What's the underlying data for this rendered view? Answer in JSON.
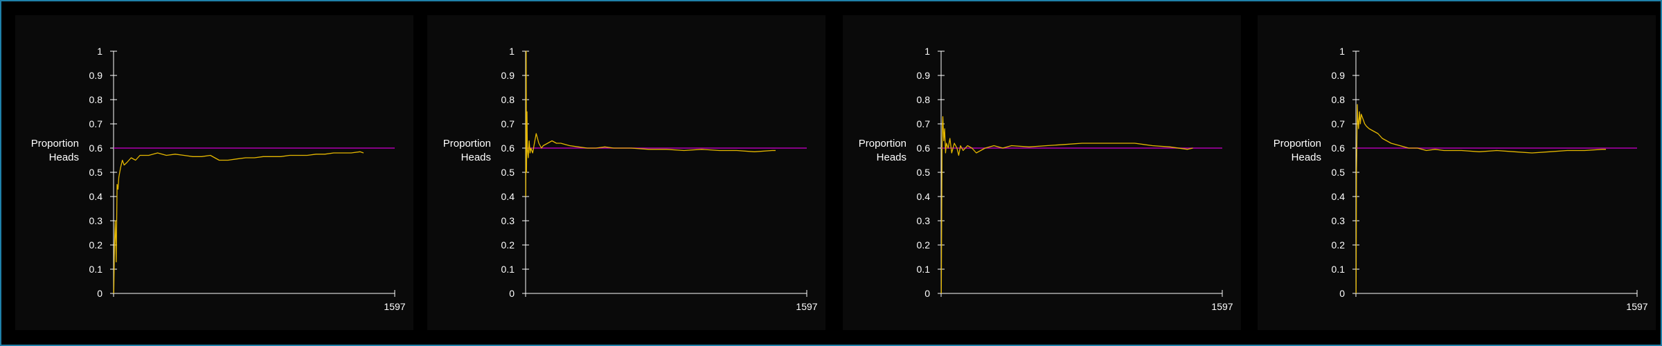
{
  "chart_data": [
    {
      "type": "line",
      "ylabel": "Proportion Heads",
      "ylabel_lines": [
        "Proportion",
        "Heads"
      ],
      "xlim": [
        0,
        1597
      ],
      "ylim": [
        0,
        1
      ],
      "y_ticks": [
        "0",
        "0.1",
        "0.2",
        "0.3",
        "0.4",
        "0.5",
        "0.6",
        "0.7",
        "0.8",
        "0.9",
        "1"
      ],
      "x_tick_labels": [
        "1597"
      ],
      "reference_line": {
        "y": 0.6,
        "color": "#b000b0"
      },
      "line_color": "#e6b800",
      "series": [
        {
          "x": [
            1,
            5,
            10,
            15,
            20,
            25,
            30,
            40,
            50,
            60,
            75,
            100,
            125,
            150,
            200,
            250,
            300,
            350,
            400,
            450,
            500,
            550,
            600,
            650,
            700,
            750,
            800,
            850,
            900,
            950,
            1000,
            1050,
            1100,
            1150,
            1200,
            1250,
            1300,
            1350,
            1400,
            1420
          ],
          "values": [
            0.0,
            0.2,
            0.3,
            0.13,
            0.45,
            0.43,
            0.48,
            0.52,
            0.55,
            0.53,
            0.54,
            0.56,
            0.55,
            0.57,
            0.57,
            0.58,
            0.57,
            0.575,
            0.57,
            0.565,
            0.565,
            0.57,
            0.55,
            0.55,
            0.555,
            0.56,
            0.56,
            0.565,
            0.565,
            0.565,
            0.57,
            0.57,
            0.57,
            0.575,
            0.575,
            0.58,
            0.58,
            0.58,
            0.585,
            0.58
          ]
        }
      ]
    },
    {
      "type": "line",
      "ylabel": "Proportion Heads",
      "ylabel_lines": [
        "Proportion",
        "Heads"
      ],
      "xlim": [
        0,
        1597
      ],
      "ylim": [
        0,
        1
      ],
      "y_ticks": [
        "0",
        "0.1",
        "0.2",
        "0.3",
        "0.4",
        "0.5",
        "0.6",
        "0.7",
        "0.8",
        "0.9",
        "1"
      ],
      "x_tick_labels": [
        "1597"
      ],
      "reference_line": {
        "y": 0.6,
        "color": "#b000b0"
      },
      "line_color": "#e6b800",
      "series": [
        {
          "x": [
            1,
            3,
            5,
            8,
            10,
            15,
            20,
            25,
            30,
            40,
            50,
            60,
            75,
            90,
            100,
            125,
            150,
            175,
            200,
            250,
            300,
            350,
            400,
            450,
            500,
            600,
            700,
            800,
            900,
            1000,
            1100,
            1200,
            1300,
            1400,
            1420
          ],
          "values": [
            0.4,
            1.0,
            0.5,
            0.75,
            0.6,
            0.56,
            0.63,
            0.58,
            0.6,
            0.58,
            0.62,
            0.66,
            0.62,
            0.6,
            0.61,
            0.62,
            0.63,
            0.62,
            0.62,
            0.61,
            0.605,
            0.6,
            0.6,
            0.605,
            0.6,
            0.6,
            0.595,
            0.595,
            0.59,
            0.595,
            0.59,
            0.59,
            0.585,
            0.59,
            0.59
          ]
        }
      ]
    },
    {
      "type": "line",
      "ylabel": "Proportion Heads",
      "ylabel_lines": [
        "Proportion",
        "Heads"
      ],
      "xlim": [
        0,
        1597
      ],
      "ylim": [
        0,
        1
      ],
      "y_ticks": [
        "0",
        "0.1",
        "0.2",
        "0.3",
        "0.4",
        "0.5",
        "0.6",
        "0.7",
        "0.8",
        "0.9",
        "1"
      ],
      "x_tick_labels": [
        "1597"
      ],
      "reference_line": {
        "y": 0.6,
        "color": "#b000b0"
      },
      "line_color": "#e6b800",
      "series": [
        {
          "x": [
            1,
            3,
            5,
            8,
            10,
            15,
            20,
            25,
            30,
            40,
            50,
            60,
            75,
            90,
            100,
            110,
            125,
            150,
            175,
            200,
            225,
            250,
            300,
            350,
            400,
            500,
            600,
            700,
            800,
            900,
            1000,
            1100,
            1200,
            1300,
            1400,
            1430
          ],
          "values": [
            0.0,
            0.3,
            0.6,
            0.7,
            0.73,
            0.63,
            0.68,
            0.58,
            0.62,
            0.6,
            0.64,
            0.58,
            0.62,
            0.6,
            0.57,
            0.61,
            0.59,
            0.61,
            0.6,
            0.58,
            0.59,
            0.6,
            0.61,
            0.6,
            0.61,
            0.605,
            0.61,
            0.615,
            0.62,
            0.62,
            0.62,
            0.62,
            0.61,
            0.605,
            0.595,
            0.6
          ]
        }
      ]
    },
    {
      "type": "line",
      "ylabel": "Proportion Heads",
      "ylabel_lines": [
        "Proportion",
        "Heads"
      ],
      "xlim": [
        0,
        1597
      ],
      "ylim": [
        0,
        1
      ],
      "y_ticks": [
        "0",
        "0.1",
        "0.2",
        "0.3",
        "0.4",
        "0.5",
        "0.6",
        "0.7",
        "0.8",
        "0.9",
        "1"
      ],
      "x_tick_labels": [
        "1597"
      ],
      "reference_line": {
        "y": 0.6,
        "color": "#b000b0"
      },
      "line_color": "#e6b800",
      "series": [
        {
          "x": [
            1,
            3,
            5,
            8,
            10,
            15,
            20,
            25,
            30,
            40,
            50,
            60,
            75,
            100,
            125,
            150,
            175,
            200,
            250,
            300,
            350,
            400,
            450,
            500,
            600,
            700,
            800,
            900,
            1000,
            1100,
            1200,
            1300,
            1400,
            1420
          ],
          "values": [
            0.0,
            0.5,
            0.6,
            0.78,
            0.73,
            0.68,
            0.75,
            0.7,
            0.74,
            0.72,
            0.7,
            0.69,
            0.68,
            0.67,
            0.66,
            0.64,
            0.63,
            0.62,
            0.61,
            0.6,
            0.6,
            0.59,
            0.595,
            0.59,
            0.59,
            0.585,
            0.59,
            0.585,
            0.58,
            0.585,
            0.59,
            0.59,
            0.595,
            0.595
          ]
        }
      ]
    }
  ]
}
